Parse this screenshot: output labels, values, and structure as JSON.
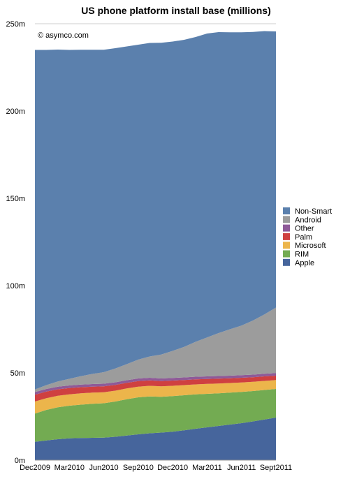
{
  "chart_data": {
    "type": "area",
    "stacked": true,
    "title": "US phone platform install base (millions)",
    "credit": "© asymco.com",
    "xlabel": "",
    "ylabel": "",
    "ylim": [
      0,
      250
    ],
    "yticks": [
      0,
      50,
      100,
      150,
      200,
      250
    ],
    "ytick_labels": [
      "0m",
      "50m",
      "100m",
      "150m",
      "200m",
      "250m"
    ],
    "x": [
      "Dec2009",
      "Jan2010",
      "Feb2010",
      "Mar2010",
      "Apr2010",
      "May2010",
      "Jun2010",
      "Jul2010",
      "Aug2010",
      "Sep2010",
      "Oct2010",
      "Nov2010",
      "Dec2010",
      "Jan2011",
      "Feb2011",
      "Mar2011",
      "Apr2011",
      "May2011",
      "Jun2011",
      "Jul2011",
      "Aug2011",
      "Sept2011"
    ],
    "xtick_labels": [
      "Dec2009",
      "Mar2010",
      "Jun2010",
      "Sep2010",
      "Dec2010",
      "Mar2011",
      "Jun2011",
      "Sept2011"
    ],
    "legend_position": "right",
    "series": [
      {
        "name": "Apple",
        "color": "#46659c",
        "values": [
          10.5,
          11.3,
          12.0,
          12.5,
          12.7,
          12.8,
          12.9,
          13.4,
          14.1,
          14.8,
          15.4,
          15.8,
          16.3,
          17.1,
          18.0,
          18.8,
          19.6,
          20.4,
          21.2,
          22.2,
          23.3,
          24.4
        ]
      },
      {
        "name": "RIM",
        "color": "#73ab52",
        "values": [
          16.2,
          17.5,
          18.3,
          18.7,
          19.1,
          19.5,
          19.7,
          20.2,
          20.8,
          21.2,
          21.1,
          20.5,
          20.4,
          20.1,
          19.7,
          19.2,
          18.7,
          18.3,
          17.9,
          17.4,
          16.9,
          16.4
        ]
      },
      {
        "name": "Microsoft",
        "color": "#ecb54b",
        "values": [
          6.9,
          6.7,
          6.6,
          6.5,
          6.5,
          6.4,
          6.3,
          6.2,
          6.2,
          6.1,
          6.1,
          6.0,
          5.9,
          5.8,
          5.7,
          5.7,
          5.6,
          5.5,
          5.4,
          5.3,
          5.2,
          5.1
        ]
      },
      {
        "name": "Palm",
        "color": "#cf4040",
        "values": [
          3.9,
          3.8,
          3.7,
          3.6,
          3.5,
          3.4,
          3.4,
          3.3,
          3.2,
          3.2,
          3.1,
          3.0,
          3.0,
          2.9,
          2.9,
          2.8,
          2.8,
          2.7,
          2.7,
          2.6,
          2.6,
          2.5
        ]
      },
      {
        "name": "Other",
        "color": "#8e5a98",
        "values": [
          1.5,
          1.5,
          1.5,
          1.5,
          1.5,
          1.5,
          1.5,
          1.5,
          1.5,
          1.5,
          1.5,
          1.5,
          1.5,
          1.5,
          1.5,
          1.5,
          1.5,
          1.5,
          1.5,
          1.5,
          1.5,
          1.5
        ]
      },
      {
        "name": "Android",
        "color": "#9c9c9c",
        "values": [
          1.5,
          2.2,
          3.0,
          3.8,
          4.8,
          5.8,
          6.6,
          7.9,
          9.2,
          10.8,
          12.2,
          13.7,
          15.5,
          17.5,
          20.0,
          22.3,
          24.6,
          26.6,
          28.4,
          31.0,
          34.0,
          37.5
        ]
      },
      {
        "name": "Non-Smart",
        "color": "#5b80ad",
        "values": [
          194.5,
          192.0,
          190.1,
          188.4,
          187.0,
          185.7,
          184.7,
          183.5,
          182.0,
          180.4,
          179.6,
          178.6,
          177.2,
          175.9,
          174.6,
          174.1,
          172.4,
          170.1,
          168.0,
          165.3,
          162.3,
          158.2
        ]
      }
    ]
  }
}
